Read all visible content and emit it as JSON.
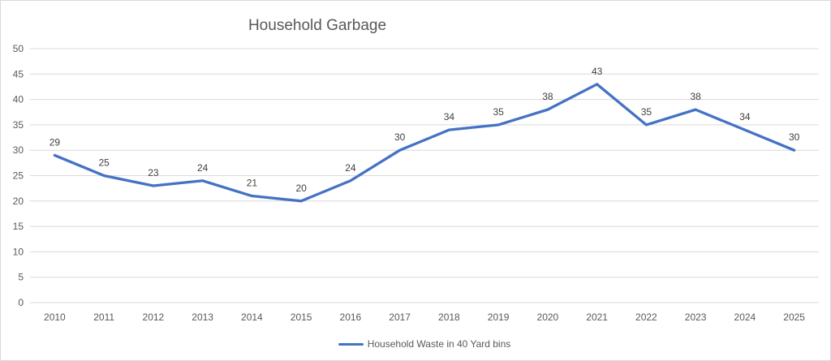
{
  "chart_data": {
    "type": "line",
    "title": "Household Garbage",
    "categories": [
      "2010",
      "2011",
      "2012",
      "2013",
      "2014",
      "2015",
      "2016",
      "2017",
      "2018",
      "2019",
      "2020",
      "2021",
      "2022",
      "2023",
      "2024",
      "2025"
    ],
    "series": [
      {
        "name": "Household Waste in 40 Yard bins",
        "values": [
          29,
          25,
          23,
          24,
          21,
          20,
          24,
          30,
          34,
          35,
          38,
          43,
          35,
          38,
          34,
          30
        ]
      }
    ],
    "xlabel": "",
    "ylabel": "",
    "ylim": [
      0,
      50
    ],
    "ytick_step": 5,
    "grid": true,
    "data_labels": "above",
    "legend_position": "bottom",
    "colors": {
      "line": "#4472C4",
      "gridline": "#D9D9D9",
      "axis_text": "#595959",
      "title_text": "#595959",
      "data_label_text": "#404040",
      "background": "#FFFFFF",
      "border": "#D9D9D9"
    }
  }
}
